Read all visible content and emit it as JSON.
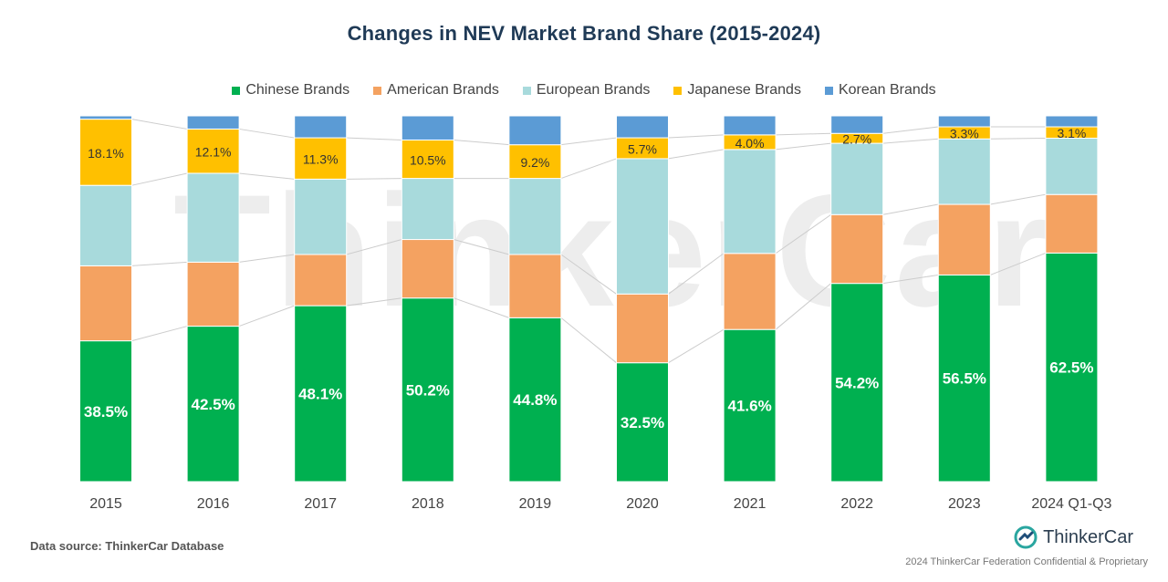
{
  "watermark": "ThinkerCar",
  "footer": {
    "data_source": "Data source: ThinkerCar Database",
    "brand": "ThinkerCar",
    "copyright": "2024 ThinkerCar Federation Confidential & Proprietary"
  },
  "chart_data": {
    "type": "bar",
    "stacked": true,
    "title": "Changes in NEV Market Brand Share (2015-2024)",
    "xlabel": "",
    "ylabel": "",
    "ylim": [
      0,
      100
    ],
    "legend_position": "top",
    "categories": [
      "2015",
      "2016",
      "2017",
      "2018",
      "2019",
      "2020",
      "2021",
      "2022",
      "2023",
      "2024 Q1-Q3"
    ],
    "series": [
      {
        "name": "Chinese Brands",
        "color": "#00b050",
        "values": [
          38.5,
          42.5,
          48.1,
          50.2,
          44.8,
          32.5,
          41.6,
          54.2,
          56.5,
          62.5
        ],
        "label_style": "white-bold"
      },
      {
        "name": "American Brands",
        "color": "#f4a261",
        "values": [
          20.5,
          17.5,
          14.0,
          16.0,
          17.3,
          18.8,
          20.8,
          18.8,
          19.3,
          16.0
        ],
        "label_style": "none"
      },
      {
        "name": "European Brands",
        "color": "#a8dadc",
        "values": [
          22.0,
          24.3,
          20.6,
          16.7,
          20.8,
          37.0,
          28.4,
          19.5,
          17.9,
          15.4
        ],
        "label_style": "none"
      },
      {
        "name": "Japanese Brands",
        "color": "#ffc000",
        "values": [
          18.1,
          12.1,
          11.3,
          10.5,
          9.2,
          5.7,
          4.0,
          2.7,
          3.3,
          3.1
        ],
        "label_style": "dark"
      },
      {
        "name": "Korean Brands",
        "color": "#5b9bd5",
        "values": [
          0.9,
          3.6,
          6.0,
          6.6,
          7.9,
          6.0,
          5.2,
          4.8,
          3.0,
          3.0
        ],
        "label_style": "none"
      }
    ],
    "value_labels": {
      "Chinese Brands": [
        "38.5%",
        "42.5%",
        "48.1%",
        "50.2%",
        "44.8%",
        "32.5%",
        "41.6%",
        "54.2%",
        "56.5%",
        "62.5%"
      ],
      "Japanese Brands": [
        "18.1%",
        "12.1%",
        "11.3%",
        "10.5%",
        "9.2%",
        "5.7%",
        "4.0%",
        "2.7%",
        "3.3%",
        "3.1%"
      ]
    },
    "connector_lines": true,
    "grid": false
  }
}
